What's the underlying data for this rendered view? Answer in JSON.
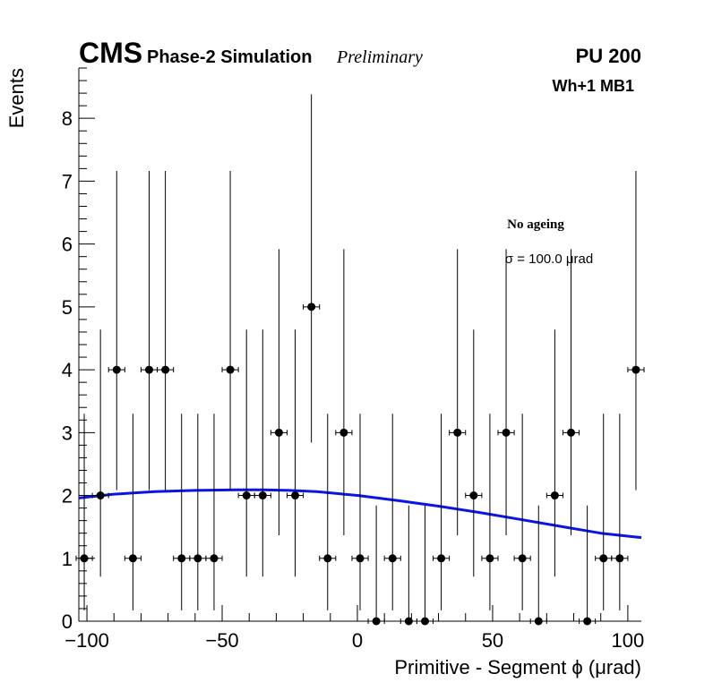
{
  "header": {
    "experiment": "CMS",
    "subtitle": "Phase-2 Simulation",
    "status": "Preliminary",
    "pileup": "PU 200"
  },
  "labels": {
    "station": "Wh+1 MB1",
    "ageing": "No ageing",
    "sigma": "σ = 100.0 μrad"
  },
  "colors": {
    "fit": "#0a14e6",
    "points": "#000000",
    "axes": "#000000"
  },
  "chart_data": {
    "type": "scatter",
    "title": "",
    "xlabel": "Primitive - Segment ϕ (μrad)",
    "ylabel": "Events",
    "xlim": [
      -103,
      105
    ],
    "ylim": [
      0,
      8.8
    ],
    "grid": false,
    "x_ticks": [
      -100,
      -50,
      0,
      50,
      100
    ],
    "x_tick_labels": [
      "−100",
      "−50",
      "0",
      "50",
      "100"
    ],
    "y_ticks": [
      0,
      1,
      2,
      3,
      4,
      5,
      6,
      7,
      8
    ],
    "y_tick_labels": [
      "0",
      "1",
      "2",
      "3",
      "4",
      "5",
      "6",
      "7",
      "8"
    ],
    "bin_half_width": 3,
    "series": [
      {
        "name": "data",
        "style": "points-with-poisson-errors",
        "x": [
          -101,
          -95,
          -89,
          -83,
          -77,
          -71,
          -65,
          -59,
          -53,
          -47,
          -41,
          -35,
          -29,
          -23,
          -17,
          -11,
          -5,
          1,
          7,
          13,
          19,
          25,
          31,
          37,
          43,
          49,
          55,
          61,
          67,
          73,
          79,
          85,
          91,
          97,
          103
        ],
        "y": [
          1,
          2,
          4,
          1,
          4,
          4,
          1,
          1,
          1,
          4,
          2,
          2,
          3,
          2,
          5,
          1,
          3,
          1,
          0,
          1,
          0,
          0,
          1,
          3,
          2,
          1,
          3,
          1,
          0,
          2,
          3,
          0,
          1,
          1,
          4
        ]
      },
      {
        "name": "gaussian fit",
        "style": "line",
        "x": [
          -103,
          -90,
          -75,
          -60,
          -45,
          -35,
          -25,
          -15,
          0,
          15,
          30,
          45,
          60,
          75,
          90,
          105
        ],
        "y": [
          1.96,
          2.02,
          2.06,
          2.08,
          2.09,
          2.09,
          2.08,
          2.06,
          2.0,
          1.92,
          1.83,
          1.73,
          1.62,
          1.51,
          1.4,
          1.33
        ]
      }
    ]
  }
}
